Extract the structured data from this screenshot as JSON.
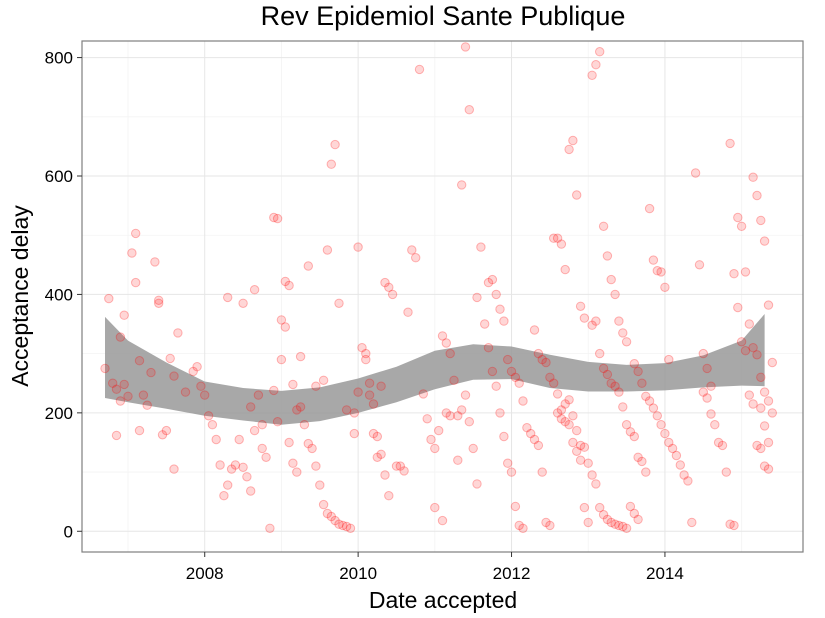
{
  "chart_data": {
    "type": "scatter",
    "title": "Rev Epidemiol Sante Publique",
    "xlabel": "Date accepted",
    "ylabel": "Acceptance delay",
    "xlim": [
      2006.4,
      2015.8
    ],
    "ylim": [
      -35,
      828
    ],
    "x_ticks": [
      2008,
      2010,
      2012,
      2014
    ],
    "x_tick_labels": [
      "2008",
      "2010",
      "2012",
      "2014"
    ],
    "y_ticks": [
      0,
      200,
      400,
      600,
      800
    ],
    "y_tick_labels": [
      "0",
      "200",
      "400",
      "600",
      "800"
    ],
    "grid": true,
    "legend": "none",
    "point_color": "#ff0000",
    "band_color": "#999999",
    "smooth_band": {
      "x": [
        2006.7,
        2007.0,
        2007.5,
        2008.0,
        2008.5,
        2009.0,
        2009.5,
        2010.0,
        2010.5,
        2011.0,
        2011.5,
        2012.0,
        2012.5,
        2013.0,
        2013.5,
        2014.0,
        2014.5,
        2015.0,
        2015.3
      ],
      "lower": [
        225,
        218,
        207,
        195,
        187,
        180,
        186,
        200,
        218,
        240,
        256,
        257,
        242,
        236,
        236,
        238,
        243,
        246,
        245
      ],
      "upper": [
        362,
        322,
        285,
        253,
        242,
        237,
        243,
        258,
        278,
        305,
        316,
        312,
        298,
        286,
        281,
        284,
        297,
        322,
        367
      ]
    },
    "points": [
      [
        2006.7,
        275
      ],
      [
        2006.75,
        393
      ],
      [
        2006.85,
        162
      ],
      [
        2006.9,
        328
      ],
      [
        2006.95,
        365
      ],
      [
        2006.8,
        250
      ],
      [
        2006.85,
        240
      ],
      [
        2006.9,
        220
      ],
      [
        2006.95,
        248
      ],
      [
        2007.0,
        228
      ],
      [
        2007.05,
        470
      ],
      [
        2007.1,
        503
      ],
      [
        2007.1,
        420
      ],
      [
        2007.15,
        288
      ],
      [
        2007.15,
        170
      ],
      [
        2007.2,
        230
      ],
      [
        2007.25,
        213
      ],
      [
        2007.3,
        268
      ],
      [
        2007.35,
        455
      ],
      [
        2007.4,
        390
      ],
      [
        2007.4,
        385
      ],
      [
        2007.45,
        163
      ],
      [
        2007.5,
        170
      ],
      [
        2007.55,
        292
      ],
      [
        2007.6,
        262
      ],
      [
        2007.6,
        105
      ],
      [
        2007.65,
        335
      ],
      [
        2007.75,
        235
      ],
      [
        2007.85,
        270
      ],
      [
        2007.9,
        278
      ],
      [
        2007.95,
        245
      ],
      [
        2008.0,
        230
      ],
      [
        2008.05,
        195
      ],
      [
        2008.1,
        180
      ],
      [
        2008.15,
        155
      ],
      [
        2008.2,
        112
      ],
      [
        2008.25,
        60
      ],
      [
        2008.3,
        78
      ],
      [
        2008.35,
        105
      ],
      [
        2008.4,
        112
      ],
      [
        2008.45,
        155
      ],
      [
        2008.5,
        108
      ],
      [
        2008.55,
        92
      ],
      [
        2008.6,
        68
      ],
      [
        2008.65,
        408
      ],
      [
        2008.7,
        230
      ],
      [
        2008.75,
        140
      ],
      [
        2008.8,
        125
      ],
      [
        2008.85,
        5
      ],
      [
        2008.9,
        238
      ],
      [
        2008.95,
        185
      ],
      [
        2009.0,
        357
      ],
      [
        2009.05,
        422
      ],
      [
        2009.1,
        415
      ],
      [
        2009.15,
        248
      ],
      [
        2009.2,
        205
      ],
      [
        2009.25,
        210
      ],
      [
        2009.3,
        180
      ],
      [
        2009.35,
        148
      ],
      [
        2009.4,
        140
      ],
      [
        2009.45,
        110
      ],
      [
        2009.5,
        78
      ],
      [
        2009.55,
        45
      ],
      [
        2009.6,
        30
      ],
      [
        2009.65,
        25
      ],
      [
        2009.7,
        18
      ],
      [
        2009.75,
        12
      ],
      [
        2009.8,
        10
      ],
      [
        2009.85,
        8
      ],
      [
        2009.9,
        5
      ],
      [
        2009.95,
        200
      ],
      [
        2010.0,
        235
      ],
      [
        2008.3,
        395
      ],
      [
        2008.5,
        385
      ],
      [
        2008.6,
        210
      ],
      [
        2008.65,
        170
      ],
      [
        2008.75,
        180
      ],
      [
        2008.9,
        530
      ],
      [
        2008.95,
        528
      ],
      [
        2009.0,
        290
      ],
      [
        2009.05,
        345
      ],
      [
        2009.1,
        150
      ],
      [
        2009.15,
        115
      ],
      [
        2009.2,
        100
      ],
      [
        2009.25,
        295
      ],
      [
        2009.35,
        448
      ],
      [
        2009.45,
        245
      ],
      [
        2009.55,
        255
      ],
      [
        2009.6,
        475
      ],
      [
        2009.65,
        620
      ],
      [
        2009.7,
        653
      ],
      [
        2009.75,
        385
      ],
      [
        2009.85,
        205
      ],
      [
        2009.95,
        165
      ],
      [
        2010.05,
        310
      ],
      [
        2010.1,
        290
      ],
      [
        2010.15,
        250
      ],
      [
        2010.2,
        215
      ],
      [
        2010.25,
        160
      ],
      [
        2010.3,
        130
      ],
      [
        2010.35,
        95
      ],
      [
        2010.4,
        60
      ],
      [
        2010.0,
        480
      ],
      [
        2010.1,
        300
      ],
      [
        2010.15,
        230
      ],
      [
        2010.2,
        165
      ],
      [
        2010.25,
        125
      ],
      [
        2010.3,
        245
      ],
      [
        2010.35,
        420
      ],
      [
        2010.4,
        412
      ],
      [
        2010.45,
        400
      ],
      [
        2010.5,
        110
      ],
      [
        2010.55,
        110
      ],
      [
        2010.6,
        102
      ],
      [
        2010.65,
        370
      ],
      [
        2010.7,
        475
      ],
      [
        2010.75,
        462
      ],
      [
        2010.8,
        780
      ],
      [
        2010.85,
        232
      ],
      [
        2010.9,
        190
      ],
      [
        2010.95,
        155
      ],
      [
        2011.0,
        140
      ],
      [
        2011.05,
        170
      ],
      [
        2011.1,
        330
      ],
      [
        2011.15,
        318
      ],
      [
        2011.2,
        300
      ],
      [
        2011.25,
        255
      ],
      [
        2011.3,
        195
      ],
      [
        2011.35,
        205
      ],
      [
        2011.4,
        230
      ],
      [
        2011.45,
        185
      ],
      [
        2011.5,
        140
      ],
      [
        2011.55,
        80
      ],
      [
        2011.0,
        40
      ],
      [
        2011.1,
        18
      ],
      [
        2011.15,
        200
      ],
      [
        2011.2,
        195
      ],
      [
        2011.3,
        120
      ],
      [
        2011.35,
        585
      ],
      [
        2011.4,
        818
      ],
      [
        2011.45,
        712
      ],
      [
        2011.55,
        395
      ],
      [
        2011.6,
        480
      ],
      [
        2011.65,
        350
      ],
      [
        2011.7,
        310
      ],
      [
        2011.75,
        270
      ],
      [
        2011.8,
        245
      ],
      [
        2011.85,
        200
      ],
      [
        2011.9,
        160
      ],
      [
        2011.95,
        115
      ],
      [
        2012.0,
        100
      ],
      [
        2012.05,
        42
      ],
      [
        2012.1,
        10
      ],
      [
        2012.15,
        5
      ],
      [
        2011.7,
        420
      ],
      [
        2011.75,
        425
      ],
      [
        2011.8,
        400
      ],
      [
        2011.85,
        375
      ],
      [
        2011.9,
        355
      ],
      [
        2011.95,
        290
      ],
      [
        2012.0,
        270
      ],
      [
        2012.05,
        260
      ],
      [
        2012.1,
        250
      ],
      [
        2012.15,
        220
      ],
      [
        2012.2,
        175
      ],
      [
        2012.25,
        165
      ],
      [
        2012.3,
        155
      ],
      [
        2012.35,
        145
      ],
      [
        2012.4,
        100
      ],
      [
        2012.45,
        15
      ],
      [
        2012.5,
        10
      ],
      [
        2012.55,
        495
      ],
      [
        2012.6,
        495
      ],
      [
        2012.65,
        485
      ],
      [
        2012.7,
        442
      ],
      [
        2012.75,
        645
      ],
      [
        2012.8,
        660
      ],
      [
        2012.85,
        568
      ],
      [
        2012.9,
        380
      ],
      [
        2012.95,
        360
      ],
      [
        2012.3,
        340
      ],
      [
        2012.35,
        300
      ],
      [
        2012.4,
        290
      ],
      [
        2012.45,
        285
      ],
      [
        2012.5,
        260
      ],
      [
        2012.55,
        250
      ],
      [
        2012.6,
        232
      ],
      [
        2012.65,
        190
      ],
      [
        2012.7,
        185
      ],
      [
        2012.75,
        180
      ],
      [
        2012.8,
        150
      ],
      [
        2012.85,
        135
      ],
      [
        2012.9,
        120
      ],
      [
        2012.95,
        40
      ],
      [
        2013.0,
        15
      ],
      [
        2013.05,
        770
      ],
      [
        2013.1,
        788
      ],
      [
        2013.15,
        810
      ],
      [
        2013.2,
        515
      ],
      [
        2013.25,
        465
      ],
      [
        2013.3,
        425
      ],
      [
        2013.35,
        400
      ],
      [
        2013.4,
        355
      ],
      [
        2013.45,
        335
      ],
      [
        2013.5,
        320
      ],
      [
        2012.6,
        200
      ],
      [
        2012.65,
        205
      ],
      [
        2012.7,
        215
      ],
      [
        2012.75,
        222
      ],
      [
        2012.8,
        195
      ],
      [
        2012.85,
        170
      ],
      [
        2012.9,
        145
      ],
      [
        2012.95,
        142
      ],
      [
        2013.0,
        115
      ],
      [
        2013.05,
        95
      ],
      [
        2013.1,
        80
      ],
      [
        2013.15,
        40
      ],
      [
        2013.2,
        28
      ],
      [
        2013.25,
        20
      ],
      [
        2013.3,
        15
      ],
      [
        2013.35,
        12
      ],
      [
        2013.4,
        10
      ],
      [
        2013.45,
        8
      ],
      [
        2013.5,
        5
      ],
      [
        2013.55,
        42
      ],
      [
        2013.6,
        30
      ],
      [
        2013.65,
        20
      ],
      [
        2013.05,
        348
      ],
      [
        2013.1,
        355
      ],
      [
        2013.15,
        300
      ],
      [
        2013.2,
        275
      ],
      [
        2013.25,
        265
      ],
      [
        2013.3,
        250
      ],
      [
        2013.35,
        245
      ],
      [
        2013.4,
        235
      ],
      [
        2013.45,
        210
      ],
      [
        2013.5,
        180
      ],
      [
        2013.55,
        168
      ],
      [
        2013.6,
        160
      ],
      [
        2013.65,
        125
      ],
      [
        2013.7,
        118
      ],
      [
        2013.75,
        100
      ],
      [
        2013.8,
        545
      ],
      [
        2013.85,
        458
      ],
      [
        2013.9,
        440
      ],
      [
        2013.95,
        438
      ],
      [
        2014.0,
        412
      ],
      [
        2014.05,
        290
      ],
      [
        2013.6,
        283
      ],
      [
        2013.65,
        270
      ],
      [
        2013.7,
        250
      ],
      [
        2013.75,
        228
      ],
      [
        2013.8,
        220
      ],
      [
        2013.85,
        208
      ],
      [
        2013.9,
        195
      ],
      [
        2013.95,
        180
      ],
      [
        2014.0,
        165
      ],
      [
        2014.05,
        150
      ],
      [
        2014.1,
        140
      ],
      [
        2014.15,
        128
      ],
      [
        2014.2,
        112
      ],
      [
        2014.25,
        95
      ],
      [
        2014.3,
        85
      ],
      [
        2014.35,
        15
      ],
      [
        2014.4,
        605
      ],
      [
        2014.45,
        450
      ],
      [
        2014.5,
        300
      ],
      [
        2014.55,
        275
      ],
      [
        2014.6,
        245
      ],
      [
        2014.5,
        235
      ],
      [
        2014.55,
        225
      ],
      [
        2014.6,
        198
      ],
      [
        2014.65,
        180
      ],
      [
        2014.7,
        150
      ],
      [
        2014.75,
        145
      ],
      [
        2014.8,
        100
      ],
      [
        2014.85,
        12
      ],
      [
        2014.9,
        10
      ],
      [
        2014.95,
        530
      ],
      [
        2015.0,
        515
      ],
      [
        2015.05,
        438
      ],
      [
        2015.1,
        350
      ],
      [
        2015.15,
        310
      ],
      [
        2015.2,
        298
      ],
      [
        2015.25,
        260
      ],
      [
        2015.3,
        235
      ],
      [
        2015.35,
        220
      ],
      [
        2015.4,
        200
      ],
      [
        2014.85,
        655
      ],
      [
        2014.9,
        435
      ],
      [
        2014.95,
        378
      ],
      [
        2015.0,
        320
      ],
      [
        2015.05,
        305
      ],
      [
        2015.1,
        230
      ],
      [
        2015.15,
        215
      ],
      [
        2015.2,
        145
      ],
      [
        2015.25,
        140
      ],
      [
        2015.3,
        110
      ],
      [
        2015.35,
        105
      ],
      [
        2015.15,
        598
      ],
      [
        2015.2,
        567
      ],
      [
        2015.25,
        525
      ],
      [
        2015.3,
        490
      ],
      [
        2015.35,
        382
      ],
      [
        2015.4,
        285
      ],
      [
        2015.25,
        208
      ],
      [
        2015.3,
        178
      ],
      [
        2015.35,
        150
      ]
    ]
  }
}
